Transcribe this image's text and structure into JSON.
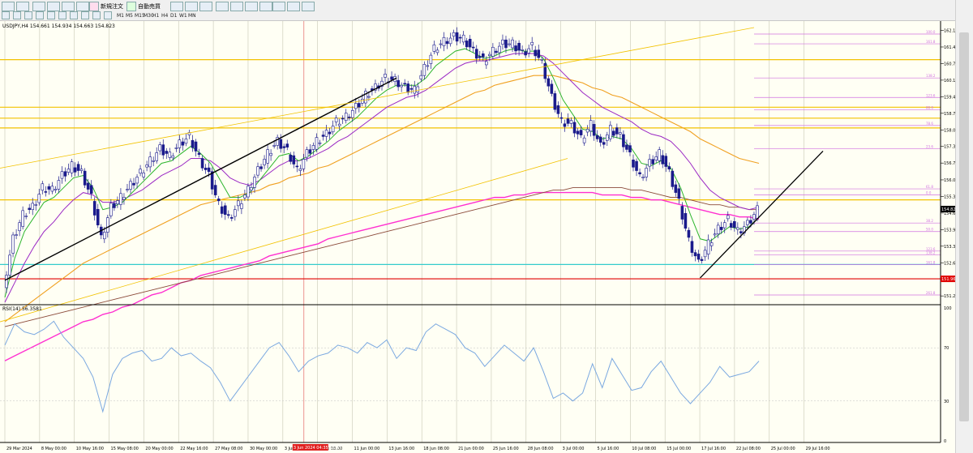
{
  "toolbar": {
    "new_order_label": "新規注文",
    "autotrade_label": "自動売買",
    "timeframes": [
      "M1",
      "M5",
      "M15",
      "M30",
      "H1",
      "H4",
      "D1",
      "W1",
      "MN"
    ]
  },
  "chart": {
    "header": "USDJPY,H4  154.661 154.934 154.663 154.823",
    "rsi_header": "RSI(14) 56.3581",
    "highlighted_date": "3 Jun 2024 04:35:15:47",
    "current_price": "154.823",
    "lowest_price": "151.961"
  },
  "chart_data": {
    "type": "candlestick",
    "symbol": "USDJPY",
    "timeframe": "H4",
    "ohlc": {
      "open": 154.661,
      "high": 154.934,
      "low": 154.663,
      "close": 154.823
    },
    "ylim": [
      150.9,
      162.4
    ],
    "price_ticks": [
      162.15,
      161.47,
      160.79,
      160.11,
      159.43,
      158.75,
      158.07,
      157.39,
      156.71,
      156.02,
      155.34,
      154.66,
      153.98,
      153.3,
      152.62,
      151.96,
      151.26
    ],
    "x_ticks": [
      "29 Mar 2024",
      "8 May 00:00",
      "10 May 16:00",
      "15 May 08:00",
      "20 May 00:00",
      "22 May 16:00",
      "27 May 08:00",
      "30 May 00:00",
      "3 Jun",
      "5 Jun 08:00",
      "11 Jun 00:00",
      "13 Jun 16:00",
      "18 Jun 08:00",
      "21 Jun 00:00",
      "25 Jun 16:00",
      "28 Jun 08:00",
      "3 Jul 00:00",
      "5 Jul 16:00",
      "10 Jul 08:00",
      "15 Jul 00:00",
      "17 Jul 16:00",
      "22 Jul 08:00",
      "25 Jul 00:00",
      "29 Jul 16:00"
    ],
    "close_path": [
      151.6,
      153.6,
      154.6,
      154.9,
      155.7,
      155.6,
      156.2,
      156.6,
      156.3,
      155.3,
      153.6,
      154.9,
      155.3,
      155.8,
      156.3,
      156.8,
      157.3,
      157.0,
      157.5,
      157.8,
      156.9,
      156.2,
      155.0,
      154.4,
      155.0,
      155.6,
      156.4,
      157.1,
      157.6,
      157.2,
      156.4,
      157.1,
      157.6,
      157.9,
      158.4,
      158.6,
      159.0,
      159.5,
      159.8,
      160.2,
      160.1,
      159.8,
      159.7,
      160.6,
      161.4,
      161.7,
      161.9,
      161.8,
      161.3,
      160.9,
      161.3,
      161.6,
      161.6,
      161.2,
      161.5,
      160.8,
      159.4,
      158.4,
      158.3,
      157.7,
      158.3,
      157.4,
      158.1,
      157.8,
      157.0,
      156.1,
      156.7,
      157.1,
      156.3,
      155.1,
      153.5,
      152.6,
      153.4,
      154.0,
      154.4,
      153.9,
      154.2,
      154.8
    ],
    "ma_fast": [
      151.2,
      152.8,
      153.9,
      154.5,
      155.1,
      155.3,
      155.7,
      156.1,
      156.2,
      155.7,
      154.8,
      154.9,
      155.1,
      155.5,
      155.9,
      156.3,
      156.7,
      156.8,
      157.1,
      157.4,
      157.1,
      156.7,
      156.0,
      155.3,
      155.3,
      155.5,
      156.0,
      156.5,
      157.0,
      157.1,
      156.8,
      157.0,
      157.3,
      157.6,
      158.0,
      158.3,
      158.6,
      159.0,
      159.4,
      159.7,
      159.9,
      159.9,
      159.9,
      160.2,
      160.7,
      161.0,
      161.3,
      161.4,
      161.2,
      161.0,
      161.1,
      161.3,
      161.4,
      161.3,
      161.3,
      161.0,
      160.2,
      159.3,
      158.7,
      158.1,
      158.0,
      157.7,
      157.8,
      157.7,
      157.3,
      156.7,
      156.6,
      156.8,
      156.5,
      155.7,
      154.6,
      153.6,
      153.5,
      153.8,
      154.1,
      154.0,
      154.1,
      154.5
    ],
    "ma_mid": [
      151.0,
      151.8,
      152.6,
      153.3,
      153.9,
      154.3,
      154.8,
      155.2,
      155.5,
      155.4,
      155.1,
      155.1,
      155.2,
      155.4,
      155.6,
      155.9,
      156.2,
      156.4,
      156.6,
      156.9,
      156.9,
      156.8,
      156.5,
      156.1,
      155.9,
      155.8,
      156.0,
      156.3,
      156.6,
      156.8,
      156.8,
      156.9,
      157.1,
      157.3,
      157.6,
      157.8,
      158.1,
      158.4,
      158.7,
      159.0,
      159.2,
      159.4,
      159.5,
      159.7,
      160.0,
      160.3,
      160.6,
      160.8,
      160.9,
      160.9,
      161.0,
      161.1,
      161.2,
      161.2,
      161.2,
      161.1,
      160.8,
      160.4,
      160.0,
      159.6,
      159.3,
      159.0,
      158.8,
      158.6,
      158.4,
      158.1,
      157.9,
      157.8,
      157.6,
      157.2,
      156.7,
      156.1,
      155.6,
      155.3,
      155.1,
      154.9,
      154.8,
      154.9
    ],
    "ma_slow": [
      150.2,
      150.5,
      150.8,
      151.1,
      151.4,
      151.7,
      152.0,
      152.3,
      152.6,
      152.8,
      153.0,
      153.2,
      153.4,
      153.6,
      153.8,
      154.0,
      154.2,
      154.4,
      154.6,
      154.8,
      155.0,
      155.1,
      155.2,
      155.3,
      155.4,
      155.5,
      155.6,
      155.8,
      155.9,
      156.1,
      156.2,
      156.3,
      156.5,
      156.6,
      156.8,
      157.0,
      157.2,
      157.4,
      157.6,
      157.8,
      158.0,
      158.2,
      158.4,
      158.6,
      158.8,
      159.0,
      159.2,
      159.4,
      159.6,
      159.7,
      159.9,
      160.0,
      160.1,
      160.2,
      160.3,
      160.3,
      160.3,
      160.2,
      160.1,
      160.0,
      159.8,
      159.7,
      159.5,
      159.4,
      159.2,
      159.0,
      158.8,
      158.6,
      158.4,
      158.2,
      158.0,
      157.7,
      157.5,
      157.3,
      157.1,
      156.9,
      156.8,
      156.7
    ],
    "ma_long": [
      148.6,
      148.8,
      149.0,
      149.2,
      149.4,
      149.6,
      149.8,
      150.0,
      150.2,
      150.3,
      150.5,
      150.6,
      150.8,
      150.9,
      151.1,
      151.3,
      151.4,
      151.6,
      151.8,
      151.9,
      152.1,
      152.2,
      152.3,
      152.4,
      152.5,
      152.6,
      152.7,
      152.9,
      153.0,
      153.1,
      153.2,
      153.3,
      153.4,
      153.6,
      153.7,
      153.8,
      153.9,
      154.0,
      154.1,
      154.2,
      154.3,
      154.4,
      154.5,
      154.6,
      154.7,
      154.8,
      154.9,
      155.0,
      155.1,
      155.2,
      155.3,
      155.3,
      155.4,
      155.4,
      155.5,
      155.5,
      155.5,
      155.5,
      155.5,
      155.5,
      155.5,
      155.4,
      155.4,
      155.4,
      155.3,
      155.3,
      155.2,
      155.2,
      155.1,
      155.0,
      154.9,
      154.8,
      154.7,
      154.6,
      154.6,
      154.5,
      154.5,
      154.4
    ],
    "ma_200": [
      150.0,
      150.1,
      150.2,
      150.3,
      150.4,
      150.5,
      150.6,
      150.7,
      150.8,
      150.9,
      151.0,
      151.1,
      151.2,
      151.3,
      151.4,
      151.5,
      151.6,
      151.7,
      151.8,
      151.9,
      152.0,
      152.1,
      152.2,
      152.3,
      152.4,
      152.5,
      152.6,
      152.7,
      152.8,
      152.9,
      153.0,
      153.1,
      153.2,
      153.3,
      153.4,
      153.5,
      153.6,
      153.7,
      153.8,
      153.9,
      154.0,
      154.1,
      154.2,
      154.3,
      154.4,
      154.5,
      154.6,
      154.7,
      154.8,
      154.9,
      155.0,
      155.1,
      155.2,
      155.3,
      155.4,
      155.5,
      155.6,
      155.6,
      155.7,
      155.7,
      155.7,
      155.7,
      155.7,
      155.7,
      155.6,
      155.6,
      155.5,
      155.4,
      155.3,
      155.3,
      155.2,
      155.1,
      155.0,
      155.0,
      154.9,
      154.9,
      154.8,
      154.8
    ],
    "horizontal_levels": [
      {
        "price": 160.95,
        "color": "#f2c200"
      },
      {
        "price": 159.0,
        "color": "#f2c200"
      },
      {
        "price": 158.55,
        "color": "#f2c200"
      },
      {
        "price": 158.15,
        "color": "#f2c200"
      },
      {
        "price": 155.2,
        "color": "#f2c200"
      },
      {
        "price": 152.55,
        "color": "#33cccc"
      },
      {
        "price": 151.961,
        "color": "#e00000"
      }
    ],
    "fib_levels": [
      {
        "label": "100.0",
        "price": 162.0
      },
      {
        "label": "161.8",
        "price": 161.6
      },
      {
        "label": "138.2",
        "price": 160.2
      },
      {
        "label": "123.6",
        "price": 159.4
      },
      {
        "label": "88.6",
        "price": 158.9
      },
      {
        "label": "78.6",
        "price": 158.25
      },
      {
        "label": "23.6",
        "price": 157.3
      },
      {
        "label": "61.8",
        "price": 155.65
      },
      {
        "label": "0.0",
        "price": 155.4
      },
      {
        "label": "38.2",
        "price": 154.25
      },
      {
        "label": "50.0",
        "price": 153.9
      },
      {
        "label": "123.6",
        "price": 153.1
      },
      {
        "label": "138.2",
        "price": 152.95
      },
      {
        "label": "161.8",
        "price": 152.55
      },
      {
        "label": "261.8",
        "price": 151.3
      }
    ],
    "rsi": {
      "name": "RSI(14)",
      "value": 56.3581,
      "ylim": [
        0,
        100
      ],
      "levels": [
        100,
        70,
        30,
        0
      ],
      "values": [
        72,
        88,
        82,
        80,
        84,
        90,
        78,
        70,
        62,
        48,
        22,
        50,
        62,
        66,
        68,
        60,
        62,
        70,
        64,
        66,
        60,
        55,
        44,
        30,
        40,
        50,
        60,
        70,
        74,
        64,
        52,
        60,
        64,
        66,
        72,
        70,
        66,
        74,
        70,
        76,
        62,
        70,
        68,
        82,
        88,
        84,
        80,
        70,
        66,
        56,
        64,
        72,
        66,
        60,
        70,
        52,
        32,
        36,
        30,
        36,
        58,
        40,
        62,
        50,
        38,
        40,
        52,
        60,
        48,
        36,
        28,
        36,
        44,
        56,
        48,
        50,
        52,
        60
      ]
    }
  },
  "colors": {
    "candle_up": "#1a1a8c",
    "candle_down": "#1a1a8c",
    "ma_fast": "#2db52d",
    "ma_mid": "#9b28c4",
    "ma_slow": "#f0a020",
    "ma_long": "#ff30d0",
    "ma_200": "#8b4a3a",
    "trend": "#000000",
    "rsi_line": "#7aa8e0",
    "fib": "#d070e0"
  }
}
